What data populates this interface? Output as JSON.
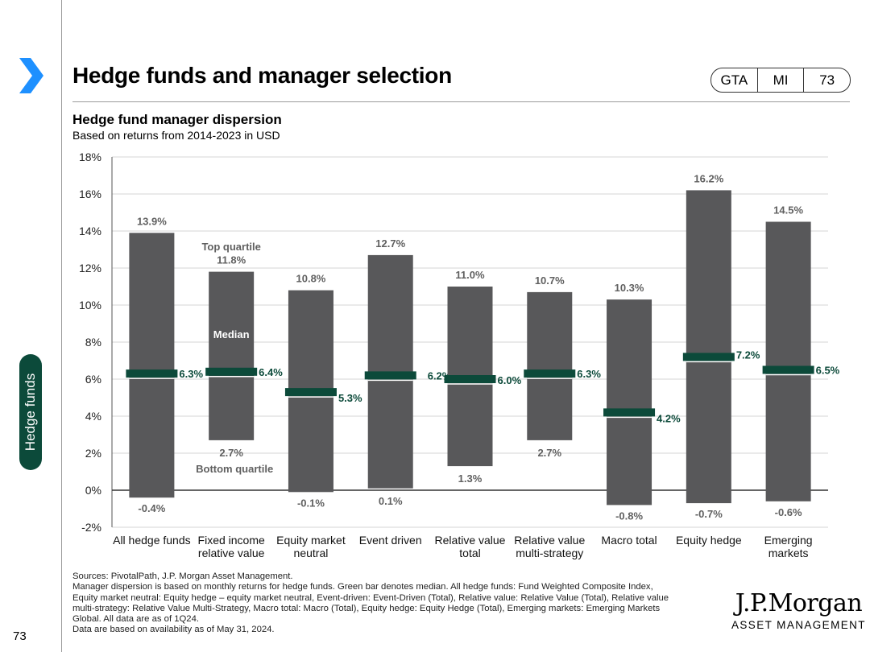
{
  "page": {
    "title": "Hedge funds and manager selection",
    "badges": [
      "GTA",
      "MI",
      "73"
    ],
    "side_tab": "Hedge funds",
    "page_number": "73",
    "colors": {
      "accent": "#1e90ff",
      "brand_green": "#0c4a3a",
      "bar": "#58585a",
      "median": "#0c4a3a"
    }
  },
  "chart_data": {
    "type": "bar",
    "title": "Hedge fund manager dispersion",
    "subtitle": "Based on returns from 2014-2023 in USD",
    "categories": [
      [
        "All hedge funds"
      ],
      [
        "Fixed income",
        "relative value"
      ],
      [
        "Equity market",
        "neutral"
      ],
      [
        "Event driven"
      ],
      [
        "Relative value",
        "total"
      ],
      [
        "Relative value",
        "multi-strategy"
      ],
      [
        "Macro total"
      ],
      [
        "Equity hedge"
      ],
      [
        "Emerging",
        "markets"
      ]
    ],
    "series": [
      {
        "name": "Top quartile",
        "values": [
          13.9,
          11.8,
          10.8,
          12.7,
          11.0,
          10.7,
          10.3,
          16.2,
          14.5
        ]
      },
      {
        "name": "Bottom quartile",
        "values": [
          -0.4,
          2.7,
          -0.1,
          0.1,
          1.3,
          2.7,
          -0.8,
          -0.7,
          -0.6
        ]
      },
      {
        "name": "Median",
        "values": [
          6.3,
          6.4,
          5.3,
          6.2,
          6.0,
          6.3,
          4.2,
          7.2,
          6.5
        ]
      }
    ],
    "top_labels": [
      "13.9%",
      "11.8%",
      "10.8%",
      "12.7%",
      "11.0%",
      "10.7%",
      "10.3%",
      "16.2%",
      "14.5%"
    ],
    "bottom_labels": [
      "-0.4%",
      "2.7%",
      "-0.1%",
      "0.1%",
      "1.3%",
      "2.7%",
      "-0.8%",
      "-0.7%",
      "-0.6%"
    ],
    "median_labels": [
      "6.3%",
      "6.4%",
      "5.3%",
      "6.2%",
      "6.0%",
      "6.3%",
      "4.2%",
      "7.2%",
      "6.5%"
    ],
    "annotations": {
      "top": "Top quartile",
      "median": "Median",
      "bottom": "Bottom quartile"
    },
    "ylim": [
      -2,
      18
    ],
    "ytick_values": [
      -2,
      0,
      2,
      4,
      6,
      8,
      10,
      12,
      14,
      16,
      18
    ],
    "ytick_labels": [
      "-2%",
      "0%",
      "2%",
      "4%",
      "6%",
      "8%",
      "10%",
      "12%",
      "14%",
      "16%",
      "18%"
    ],
    "grid": true,
    "xlabel": "",
    "ylabel": ""
  },
  "footnotes": {
    "sources": "Sources: PivotalPath, J.P. Morgan Asset Management.",
    "note_lines": [
      "Manager dispersion is based on monthly returns for hedge funds. Green bar denotes median. All hedge funds: Fund Weighted Composite Index,",
      "Equity market neutral: Equity hedge – equity market neutral, Event-driven: Event-Driven (Total), Relative value: Relative Value (Total), Relative value",
      "multi-strategy: Relative Value Multi-Strategy, Macro total: Macro (Total), Equity hedge: Equity Hedge (Total), Emerging markets: Emerging Markets",
      "Global. All data are as of 1Q24."
    ],
    "availability": "Data are based on availability as of May 31, 2024."
  },
  "logo": {
    "name": "J.P.Morgan",
    "sub": "ASSET MANAGEMENT"
  }
}
